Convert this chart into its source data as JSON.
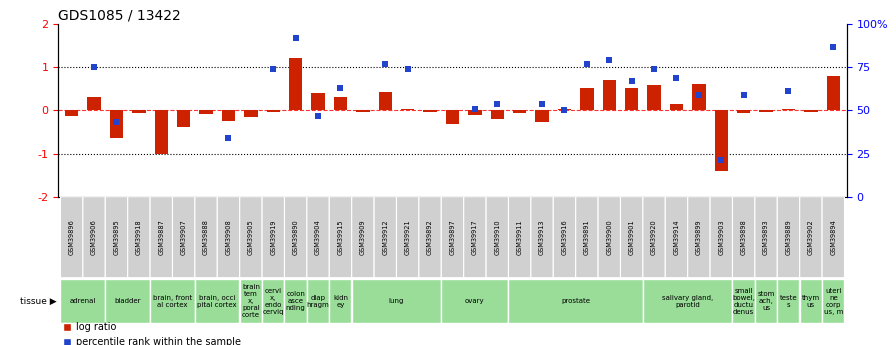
{
  "title": "GDS1085 / 13422",
  "samples": [
    "GSM39896",
    "GSM39906",
    "GSM39895",
    "GSM39918",
    "GSM39887",
    "GSM39907",
    "GSM39888",
    "GSM39908",
    "GSM39905",
    "GSM39919",
    "GSM39890",
    "GSM39904",
    "GSM39915",
    "GSM39909",
    "GSM39912",
    "GSM39921",
    "GSM39892",
    "GSM39897",
    "GSM39917",
    "GSM39910",
    "GSM39911",
    "GSM39913",
    "GSM39916",
    "GSM39891",
    "GSM39900",
    "GSM39901",
    "GSM39920",
    "GSM39914",
    "GSM39899",
    "GSM39903",
    "GSM39898",
    "GSM39893",
    "GSM39889",
    "GSM39902",
    "GSM39894"
  ],
  "log_ratio": [
    -0.12,
    0.32,
    -0.65,
    -0.05,
    -1.02,
    -0.38,
    -0.08,
    -0.25,
    -0.15,
    -0.04,
    1.22,
    0.4,
    0.32,
    -0.04,
    0.42,
    0.04,
    -0.03,
    -0.32,
    -0.1,
    -0.2,
    -0.07,
    -0.26,
    0.04,
    0.52,
    0.7,
    0.52,
    0.6,
    0.14,
    0.62,
    -1.4,
    -0.07,
    -0.04,
    0.04,
    -0.04,
    0.8
  ],
  "percentile_rank": [
    null,
    75,
    43,
    null,
    null,
    null,
    null,
    34,
    null,
    74,
    92,
    47,
    63,
    null,
    77,
    74,
    null,
    null,
    51,
    54,
    null,
    54,
    50,
    77,
    79,
    67,
    74,
    69,
    59,
    21,
    59,
    null,
    61,
    null,
    87
  ],
  "tissue_groups": [
    {
      "label": "adrenal",
      "start": 0,
      "end": 1
    },
    {
      "label": "bladder",
      "start": 2,
      "end": 3
    },
    {
      "label": "brain, front\nal cortex",
      "start": 4,
      "end": 5
    },
    {
      "label": "brain, occi\npital cortex",
      "start": 6,
      "end": 7
    },
    {
      "label": "brain\ntem\nx,\nporal\ncorte",
      "start": 8,
      "end": 8
    },
    {
      "label": "cervi\nx,\nendo\ncerviq",
      "start": 9,
      "end": 9
    },
    {
      "label": "colon\nasce\nnding",
      "start": 10,
      "end": 10
    },
    {
      "label": "diap\nhragm",
      "start": 11,
      "end": 11
    },
    {
      "label": "kidn\ney",
      "start": 12,
      "end": 12
    },
    {
      "label": "lung",
      "start": 13,
      "end": 16
    },
    {
      "label": "ovary",
      "start": 17,
      "end": 19
    },
    {
      "label": "prostate",
      "start": 20,
      "end": 25
    },
    {
      "label": "salivary gland,\nparotid",
      "start": 26,
      "end": 29
    },
    {
      "label": "small\nbowel,\nductu\ndenus",
      "start": 30,
      "end": 30
    },
    {
      "label": "stom\nach,\nus",
      "start": 31,
      "end": 31
    },
    {
      "label": "teste\ns",
      "start": 32,
      "end": 32
    },
    {
      "label": "thym\nus",
      "start": 33,
      "end": 33
    },
    {
      "label": "uteri\nne\ncorp\nus, m",
      "start": 34,
      "end": 34
    }
  ],
  "bar_color": "#cc2200",
  "marker_color": "#2244cc",
  "tissue_color": "#99dd99",
  "sample_box_color": "#d0d0d0"
}
